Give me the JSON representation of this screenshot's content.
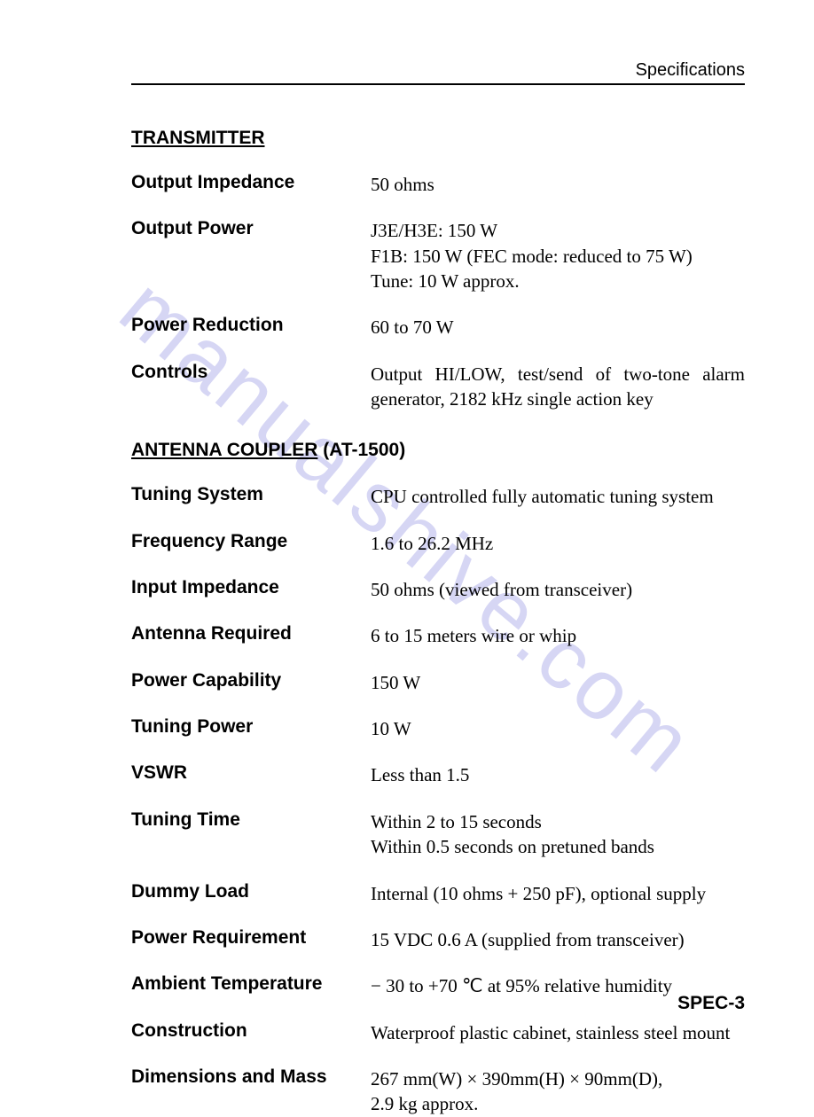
{
  "header": {
    "right": "Specifications"
  },
  "watermark": "manualshive.com",
  "footer": "SPEC-3",
  "sections": {
    "transmitter": {
      "title_u": "TRANSMITTER",
      "title_rest": "",
      "rows": {
        "output_impedance": {
          "label": "Output Impedance",
          "lines": [
            "50 ohms"
          ]
        },
        "output_power": {
          "label": "Output Power",
          "lines": [
            "J3E/H3E: 150 W",
            "F1B: 150 W (FEC mode: reduced to 75 W)",
            "Tune: 10 W approx."
          ]
        },
        "power_reduction": {
          "label": "Power Reduction",
          "lines": [
            "60 to 70 W"
          ]
        },
        "controls": {
          "label": "Controls",
          "lines": [
            "Output HI/LOW, test/send of two-tone alarm generator, 2182 kHz single action key"
          ]
        }
      }
    },
    "coupler": {
      "title_u": "ANTENNA COUPLER",
      "title_rest": " (AT-1500)",
      "rows": {
        "tuning_system": {
          "label": "Tuning System",
          "lines": [
            "CPU controlled fully automatic tuning system"
          ]
        },
        "frequency_range": {
          "label": "Frequency Range",
          "lines": [
            "1.6 to 26.2 MHz"
          ]
        },
        "input_impedance": {
          "label": "Input Impedance",
          "lines": [
            "50 ohms (viewed from transceiver)"
          ]
        },
        "antenna_required": {
          "label": "Antenna Required",
          "lines": [
            "6 to 15 meters wire or whip"
          ]
        },
        "power_capability": {
          "label": "Power Capability",
          "lines": [
            "150 W"
          ]
        },
        "tuning_power": {
          "label": "Tuning Power",
          "lines": [
            "10 W"
          ]
        },
        "vswr": {
          "label": "VSWR",
          "lines": [
            "Less than 1.5"
          ]
        },
        "tuning_time": {
          "label": "Tuning Time",
          "lines": [
            "Within 2 to 15 seconds",
            "Within 0.5 seconds on pretuned bands"
          ]
        },
        "dummy_load": {
          "label": "Dummy Load",
          "lines": [
            "Internal (10 ohms + 250 pF), optional supply"
          ]
        },
        "power_requirement": {
          "label": "Power Requirement",
          "lines": [
            "15 VDC 0.6 A (supplied from transceiver)"
          ]
        },
        "ambient_temperature": {
          "label": "Ambient Temperature",
          "lines": [
            "− 30 to +70 ℃ at 95% relative humidity"
          ]
        },
        "construction": {
          "label": "Construction",
          "lines": [
            "Waterproof plastic cabinet, stainless steel mount"
          ]
        },
        "dimensions_mass": {
          "label": "Dimensions and Mass",
          "lines": [
            "267 mm(W) × 390mm(H) × 90mm(D),",
            "2.9 kg approx."
          ]
        }
      }
    }
  }
}
